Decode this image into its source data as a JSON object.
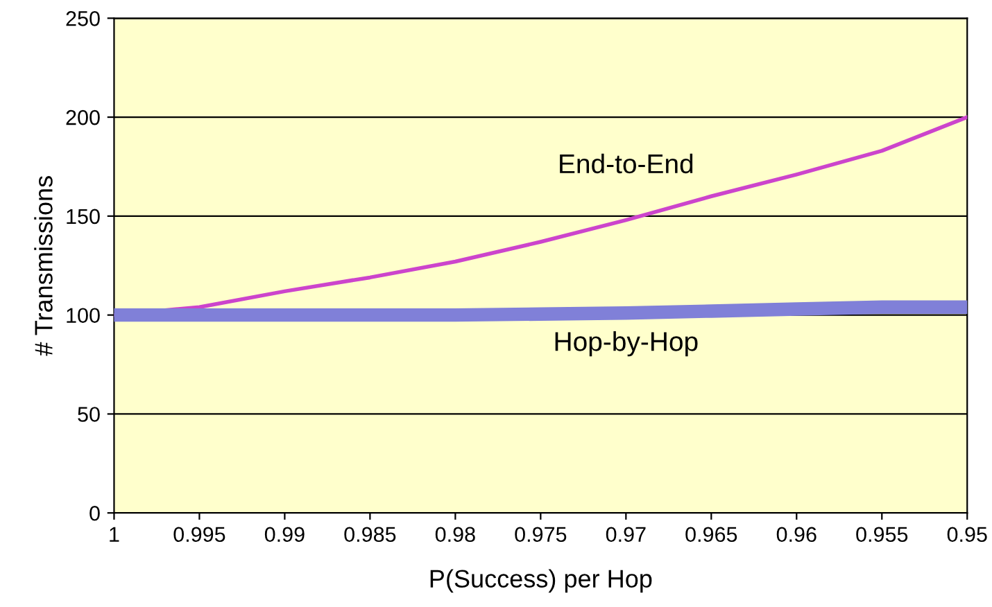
{
  "chart_data": {
    "type": "line",
    "xlabel": "P(Success) per Hop",
    "ylabel": "# Transmissions",
    "x": [
      1,
      0.995,
      0.99,
      0.985,
      0.98,
      0.975,
      0.97,
      0.965,
      0.96,
      0.955,
      0.95
    ],
    "series": [
      {
        "name": "End-to-End",
        "color": "#cc44cc",
        "values": [
          100,
          104,
          112,
          119,
          127,
          137,
          148,
          160,
          171,
          183,
          200
        ]
      },
      {
        "name": "Hop-by-Hop",
        "color": "#8080d8",
        "values": [
          100,
          100,
          100,
          100,
          100,
          100.5,
          101,
          102,
          103,
          104,
          104
        ]
      }
    ],
    "xlim": [
      1,
      0.95
    ],
    "xticks": [
      1,
      0.995,
      0.99,
      0.985,
      0.98,
      0.975,
      0.97,
      0.965,
      0.96,
      0.955,
      0.95
    ],
    "ylim": [
      0,
      250
    ],
    "yticks": [
      0,
      50,
      100,
      150,
      200,
      250
    ],
    "grid": "y",
    "marker": "none",
    "line_style": "solid",
    "legend": false
  }
}
